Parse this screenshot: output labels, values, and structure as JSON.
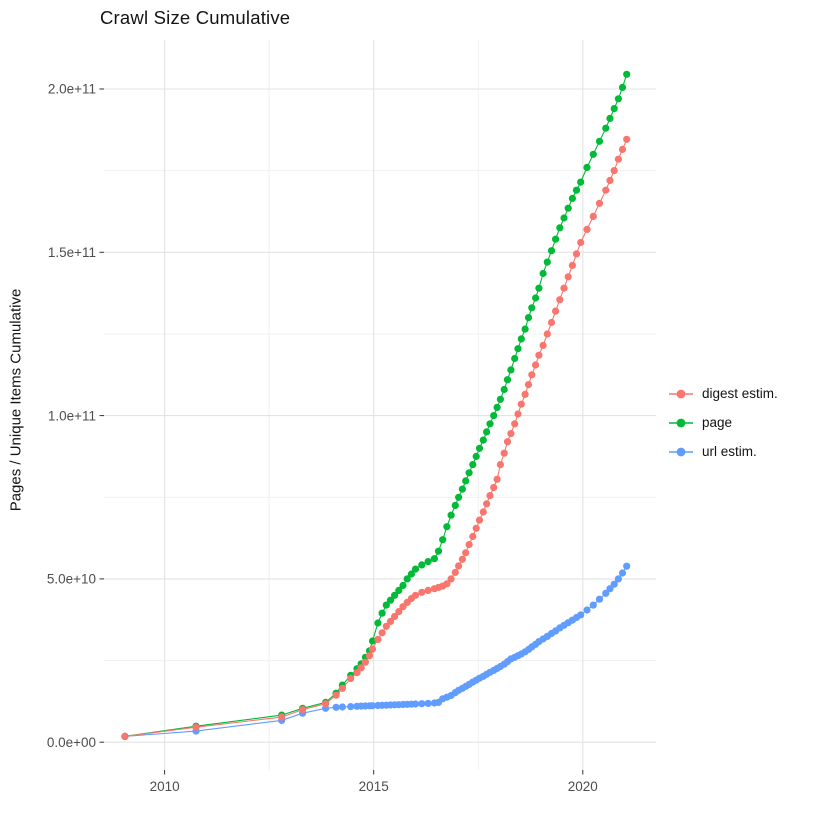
{
  "title": "Crawl Size Cumulative",
  "axes": {
    "y_title": "Pages / Unique Items Cumulative",
    "x_tick_labels": [
      "2010",
      "2015",
      "2020"
    ],
    "y_tick_labels": [
      "0.0e+00",
      "5.0e+10",
      "1.0e+11",
      "1.5e+11",
      "2.0e+11"
    ]
  },
  "legend": {
    "items": [
      {
        "label": "digest estim.",
        "color": "#F8766D"
      },
      {
        "label": "page",
        "color": "#00BA38"
      },
      {
        "label": "url estim.",
        "color": "#619CFF"
      }
    ]
  },
  "colors": {
    "digest": "#F8766D",
    "page": "#00BA38",
    "url": "#619CFF",
    "grid_major": "#E3E3E3",
    "grid_minor": "#F1F1F1",
    "tick_text": "#4D4D4D",
    "tick_mark": "#333333",
    "text": "#141414",
    "background": "#FFFFFF"
  },
  "chart_data": {
    "type": "line",
    "title": "Crawl Size Cumulative",
    "xlabel": "",
    "ylabel": "Pages / Unique Items Cumulative",
    "value_unit": 1000000000,
    "xlim": [
      2008.55,
      2021.75
    ],
    "ylim": [
      -8.5,
      215
    ],
    "x_ticks": [
      {
        "value": 2010,
        "label": "2010"
      },
      {
        "value": 2015,
        "label": "2015"
      },
      {
        "value": 2020,
        "label": "2020"
      }
    ],
    "y_ticks": [
      {
        "value": 0,
        "label": "0.0e+00"
      },
      {
        "value": 50,
        "label": "5.0e+10"
      },
      {
        "value": 100,
        "label": "1.0e+11"
      },
      {
        "value": 150,
        "label": "1.5e+11"
      },
      {
        "value": 200,
        "label": "2.0e+11"
      }
    ],
    "x_minor": [
      2012.5,
      2017.5
    ],
    "y_minor": [
      25,
      75,
      125,
      175
    ],
    "grid": true,
    "legend_position": "right",
    "draw_order": [
      2,
      1,
      0
    ],
    "series": [
      {
        "name": "digest estim.",
        "color": "#F8766D",
        "points": [
          [
            2009.05,
            1.8
          ],
          [
            2010.75,
            4.6
          ],
          [
            2012.8,
            7.7
          ],
          [
            2013.3,
            10
          ],
          [
            2013.85,
            11.8
          ],
          [
            2014.1,
            14.4
          ],
          [
            2014.25,
            16.5
          ],
          [
            2014.45,
            19.5
          ],
          [
            2014.6,
            21.3
          ],
          [
            2014.7,
            22.8
          ],
          [
            2014.8,
            24.5
          ],
          [
            2014.9,
            26.5
          ],
          [
            2014.97,
            28.5
          ],
          [
            2015.1,
            31.5
          ],
          [
            2015.2,
            33.5
          ],
          [
            2015.3,
            35.5
          ],
          [
            2015.4,
            37
          ],
          [
            2015.5,
            38.5
          ],
          [
            2015.6,
            40
          ],
          [
            2015.7,
            41.5
          ],
          [
            2015.8,
            42.8
          ],
          [
            2015.9,
            44
          ],
          [
            2016.0,
            45
          ],
          [
            2016.15,
            45.9
          ],
          [
            2016.3,
            46.5
          ],
          [
            2016.45,
            47
          ],
          [
            2016.55,
            47.4
          ],
          [
            2016.65,
            47.8
          ],
          [
            2016.75,
            48.5
          ],
          [
            2016.85,
            50
          ],
          [
            2016.95,
            52
          ],
          [
            2017.03,
            54
          ],
          [
            2017.12,
            56
          ],
          [
            2017.2,
            58
          ],
          [
            2017.28,
            60.5
          ],
          [
            2017.37,
            63
          ],
          [
            2017.45,
            65.5
          ],
          [
            2017.53,
            68
          ],
          [
            2017.62,
            70.5
          ],
          [
            2017.7,
            73
          ],
          [
            2017.78,
            75.5
          ],
          [
            2017.87,
            78
          ],
          [
            2017.95,
            80.5
          ],
          [
            2018.03,
            85
          ],
          [
            2018.12,
            88.5
          ],
          [
            2018.2,
            92
          ],
          [
            2018.28,
            94.5
          ],
          [
            2018.37,
            97.5
          ],
          [
            2018.45,
            100.5
          ],
          [
            2018.53,
            103.5
          ],
          [
            2018.62,
            106.5
          ],
          [
            2018.7,
            109.5
          ],
          [
            2018.78,
            112.5
          ],
          [
            2018.87,
            115.5
          ],
          [
            2018.95,
            118.5
          ],
          [
            2019.05,
            121.5
          ],
          [
            2019.15,
            125
          ],
          [
            2019.25,
            128.5
          ],
          [
            2019.35,
            132
          ],
          [
            2019.45,
            135.5
          ],
          [
            2019.55,
            139
          ],
          [
            2019.65,
            142.5
          ],
          [
            2019.75,
            146
          ],
          [
            2019.85,
            149.5
          ],
          [
            2019.95,
            153
          ],
          [
            2020.1,
            157
          ],
          [
            2020.25,
            161
          ],
          [
            2020.4,
            165
          ],
          [
            2020.55,
            169
          ],
          [
            2020.65,
            172
          ],
          [
            2020.75,
            175
          ],
          [
            2020.85,
            178.5
          ],
          [
            2020.95,
            181.5
          ],
          [
            2021.05,
            184.6
          ]
        ]
      },
      {
        "name": "page",
        "color": "#00BA38",
        "points": [
          [
            2009.05,
            1.8
          ],
          [
            2010.75,
            4.9
          ],
          [
            2012.8,
            8.3
          ],
          [
            2013.3,
            10.4
          ],
          [
            2013.85,
            12.2
          ],
          [
            2014.1,
            15
          ],
          [
            2014.25,
            17.5
          ],
          [
            2014.45,
            20.5
          ],
          [
            2014.6,
            22.5
          ],
          [
            2014.7,
            24
          ],
          [
            2014.8,
            26
          ],
          [
            2014.9,
            28
          ],
          [
            2014.97,
            31
          ],
          [
            2015.1,
            36.5
          ],
          [
            2015.2,
            39.5
          ],
          [
            2015.3,
            42
          ],
          [
            2015.4,
            43.5
          ],
          [
            2015.5,
            45
          ],
          [
            2015.6,
            46.5
          ],
          [
            2015.7,
            48
          ],
          [
            2015.8,
            50
          ],
          [
            2015.9,
            51.5
          ],
          [
            2016.0,
            53
          ],
          [
            2016.15,
            54.3
          ],
          [
            2016.3,
            55.3
          ],
          [
            2016.45,
            56.2
          ],
          [
            2016.55,
            58.5
          ],
          [
            2016.65,
            62
          ],
          [
            2016.75,
            66
          ],
          [
            2016.85,
            69.5
          ],
          [
            2016.95,
            72.5
          ],
          [
            2017.03,
            75
          ],
          [
            2017.12,
            77.5
          ],
          [
            2017.2,
            80
          ],
          [
            2017.28,
            82.5
          ],
          [
            2017.37,
            85
          ],
          [
            2017.45,
            87.5
          ],
          [
            2017.53,
            90
          ],
          [
            2017.62,
            92.5
          ],
          [
            2017.7,
            95
          ],
          [
            2017.78,
            97.5
          ],
          [
            2017.87,
            100
          ],
          [
            2017.95,
            102.5
          ],
          [
            2018.03,
            105
          ],
          [
            2018.12,
            108
          ],
          [
            2018.2,
            111
          ],
          [
            2018.28,
            114
          ],
          [
            2018.37,
            117.5
          ],
          [
            2018.45,
            120.5
          ],
          [
            2018.53,
            123.5
          ],
          [
            2018.62,
            126.5
          ],
          [
            2018.7,
            130
          ],
          [
            2018.78,
            133
          ],
          [
            2018.87,
            136
          ],
          [
            2018.95,
            139
          ],
          [
            2019.05,
            143.5
          ],
          [
            2019.15,
            147
          ],
          [
            2019.25,
            150.5
          ],
          [
            2019.35,
            154
          ],
          [
            2019.45,
            157.5
          ],
          [
            2019.55,
            160.5
          ],
          [
            2019.65,
            163.5
          ],
          [
            2019.75,
            166.5
          ],
          [
            2019.85,
            169
          ],
          [
            2019.95,
            171.5
          ],
          [
            2020.1,
            176
          ],
          [
            2020.25,
            180
          ],
          [
            2020.4,
            184
          ],
          [
            2020.55,
            188
          ],
          [
            2020.65,
            191
          ],
          [
            2020.75,
            194
          ],
          [
            2020.85,
            197
          ],
          [
            2020.95,
            200.5
          ],
          [
            2021.05,
            204.5
          ]
        ]
      },
      {
        "name": "url estim.",
        "color": "#619CFF",
        "points": [
          [
            2009.05,
            1.8
          ],
          [
            2010.75,
            3.4
          ],
          [
            2012.8,
            6.7
          ],
          [
            2013.3,
            8.9
          ],
          [
            2013.85,
            10.4
          ],
          [
            2014.1,
            10.7
          ],
          [
            2014.25,
            10.8
          ],
          [
            2014.45,
            10.9
          ],
          [
            2014.6,
            11
          ],
          [
            2014.7,
            11.05
          ],
          [
            2014.8,
            11.1
          ],
          [
            2014.9,
            11.15
          ],
          [
            2014.97,
            11.2
          ],
          [
            2015.1,
            11.25
          ],
          [
            2015.2,
            11.3
          ],
          [
            2015.3,
            11.35
          ],
          [
            2015.4,
            11.4
          ],
          [
            2015.5,
            11.45
          ],
          [
            2015.6,
            11.5
          ],
          [
            2015.7,
            11.55
          ],
          [
            2015.8,
            11.6
          ],
          [
            2015.9,
            11.65
          ],
          [
            2016.0,
            11.7
          ],
          [
            2016.15,
            11.8
          ],
          [
            2016.3,
            11.9
          ],
          [
            2016.45,
            12
          ],
          [
            2016.55,
            12.2
          ],
          [
            2016.65,
            13.3
          ],
          [
            2016.75,
            13.8
          ],
          [
            2016.85,
            14.3
          ],
          [
            2016.95,
            15.2
          ],
          [
            2017.03,
            15.9
          ],
          [
            2017.12,
            16.5
          ],
          [
            2017.2,
            17.1
          ],
          [
            2017.28,
            17.7
          ],
          [
            2017.37,
            18.4
          ],
          [
            2017.45,
            19
          ],
          [
            2017.53,
            19.6
          ],
          [
            2017.62,
            20.2
          ],
          [
            2017.7,
            20.8
          ],
          [
            2017.78,
            21.4
          ],
          [
            2017.87,
            22
          ],
          [
            2017.95,
            22.6
          ],
          [
            2018.03,
            23.2
          ],
          [
            2018.12,
            23.9
          ],
          [
            2018.2,
            24.7
          ],
          [
            2018.28,
            25.5
          ],
          [
            2018.37,
            26
          ],
          [
            2018.45,
            26.5
          ],
          [
            2018.53,
            27
          ],
          [
            2018.62,
            27.7
          ],
          [
            2018.7,
            28.4
          ],
          [
            2018.78,
            29.2
          ],
          [
            2018.87,
            30
          ],
          [
            2018.95,
            30.8
          ],
          [
            2019.05,
            31.6
          ],
          [
            2019.15,
            32.4
          ],
          [
            2019.25,
            33.3
          ],
          [
            2019.35,
            34.1
          ],
          [
            2019.45,
            35
          ],
          [
            2019.55,
            35.8
          ],
          [
            2019.65,
            36.6
          ],
          [
            2019.75,
            37.4
          ],
          [
            2019.85,
            38.2
          ],
          [
            2019.95,
            39
          ],
          [
            2020.1,
            40.5
          ],
          [
            2020.25,
            42
          ],
          [
            2020.4,
            43.8
          ],
          [
            2020.55,
            45.6
          ],
          [
            2020.65,
            47
          ],
          [
            2020.75,
            48.4
          ],
          [
            2020.85,
            50
          ],
          [
            2020.95,
            51.8
          ],
          [
            2021.05,
            53.9
          ]
        ]
      }
    ]
  }
}
